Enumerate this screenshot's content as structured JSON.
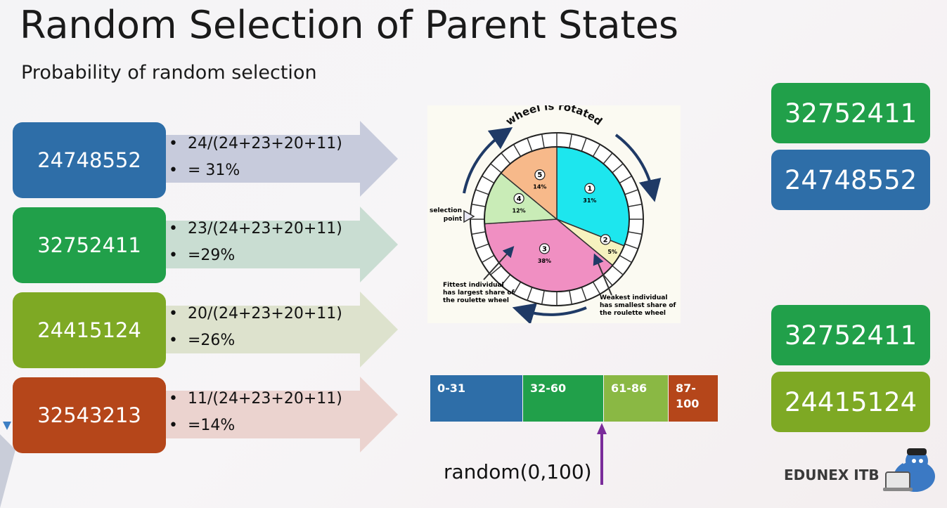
{
  "title": "Random Selection of Parent States",
  "subtitle": "Probability of random selection",
  "colors": {
    "blue": "#2e6ea8",
    "green": "#21a04a",
    "olive": "#7ea924",
    "orange": "#b5461a"
  },
  "chromosomes": [
    {
      "value": "24748552",
      "line1": "24/(24+23+20+11)",
      "line2": "= 31%",
      "color": "#2e6ea8"
    },
    {
      "value": "32752411",
      "line1": "23/(24+23+20+11)",
      "line2": "=29%",
      "color": "#21a04a"
    },
    {
      "value": "24415124",
      "line1": "20/(24+23+20+11)",
      "line2": "=26%",
      "color": "#7ea924"
    },
    {
      "value": "32543213",
      "line1": "11/(24+23+20+11)",
      "line2": "=14%",
      "color": "#b5461a"
    }
  ],
  "wheel": {
    "caption": "wheel is rotated",
    "selection_label_1": "selection",
    "selection_label_2": "point",
    "fittest": [
      "Fittest individual",
      "has largest share of",
      "the roulette wheel"
    ],
    "weakest": [
      "Weakest individual",
      "has smallest share of",
      "the roulette wheel"
    ],
    "slices": [
      {
        "num": "1",
        "pct": "31%",
        "value": 31,
        "color": "#1de6ee"
      },
      {
        "num": "2",
        "pct": "5%",
        "value": 5,
        "color": "#f6f2bf"
      },
      {
        "num": "3",
        "pct": "38%",
        "value": 38,
        "color": "#f08fc2"
      },
      {
        "num": "4",
        "pct": "12%",
        "value": 12,
        "color": "#c9ecb7"
      },
      {
        "num": "5",
        "pct": "14%",
        "value": 14,
        "color": "#f7b98a"
      }
    ]
  },
  "ranges": [
    {
      "line1": "0-31",
      "line2": "",
      "color": "#2e6ea8"
    },
    {
      "line1": "32-60",
      "line2": "",
      "color": "#21a04a"
    },
    {
      "line1": "61-86",
      "line2": "",
      "color": "#8ab844"
    },
    {
      "line1": "87-",
      "line2": "100",
      "color": "#b5461a"
    }
  ],
  "random_label": "random(0,100)",
  "selected": [
    {
      "value": "32752411",
      "color": "#21a04a"
    },
    {
      "value": "24748552",
      "color": "#2e6ea8"
    },
    {
      "value": "32752411",
      "color": "#21a04a"
    },
    {
      "value": "24415124",
      "color": "#7ea924"
    }
  ],
  "brand": "EDUNEX ITB"
}
